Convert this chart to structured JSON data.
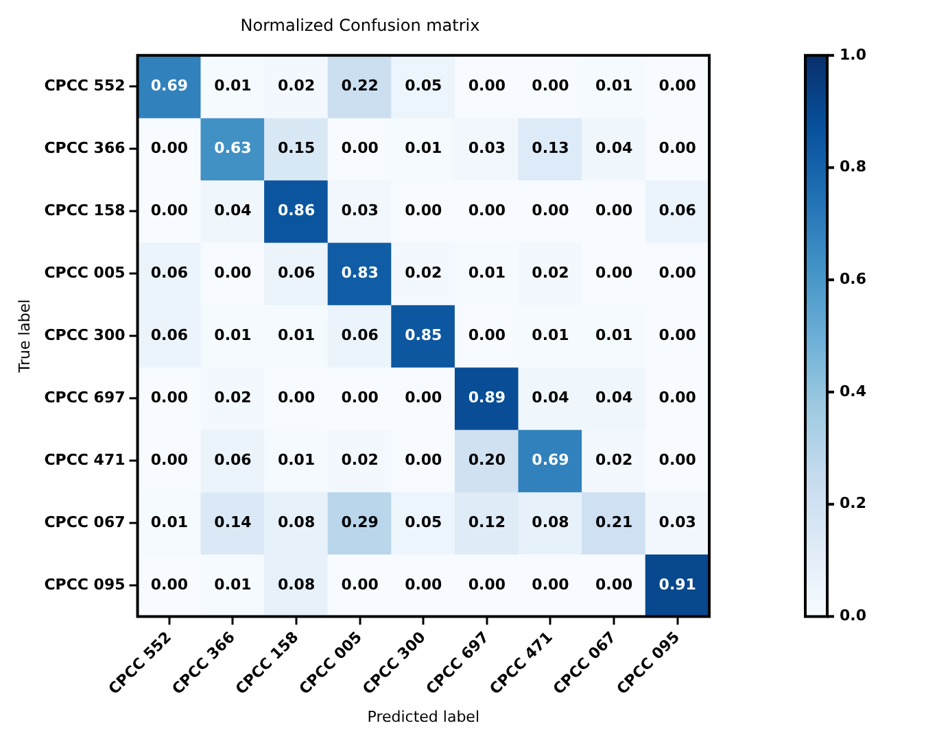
{
  "chart_data": {
    "type": "heatmap",
    "title": "Normalized Confusion matrix",
    "xlabel": "Predicted label",
    "ylabel": "True label",
    "categories": [
      "CPCC 552",
      "CPCC 366",
      "CPCC 158",
      "CPCC 005",
      "CPCC 300",
      "CPCC 697",
      "CPCC 471",
      "CPCC 067",
      "CPCC 095"
    ],
    "y_categories": [
      "CPCC 552",
      "CPCC 366",
      "CPCC 158",
      "CPCC 005",
      "CPCC 300",
      "CPCC 697",
      "CPCC 471",
      "CPCC 067",
      "CPCC 095"
    ],
    "cells": [
      [
        0.69,
        0.01,
        0.02,
        0.22,
        0.05,
        0.0,
        0.0,
        0.01,
        0.0
      ],
      [
        0.0,
        0.63,
        0.15,
        0.0,
        0.01,
        0.03,
        0.13,
        0.04,
        0.0
      ],
      [
        0.0,
        0.04,
        0.86,
        0.03,
        0.0,
        0.0,
        0.0,
        0.0,
        0.06
      ],
      [
        0.06,
        0.0,
        0.06,
        0.83,
        0.02,
        0.01,
        0.02,
        0.0,
        0.0
      ],
      [
        0.06,
        0.01,
        0.01,
        0.06,
        0.85,
        0.0,
        0.01,
        0.01,
        0.0
      ],
      [
        0.0,
        0.02,
        0.0,
        0.0,
        0.0,
        0.89,
        0.04,
        0.04,
        0.0
      ],
      [
        0.0,
        0.06,
        0.01,
        0.02,
        0.0,
        0.2,
        0.69,
        0.02,
        0.0
      ],
      [
        0.01,
        0.14,
        0.08,
        0.29,
        0.05,
        0.12,
        0.08,
        0.21,
        0.03
      ],
      [
        0.0,
        0.01,
        0.08,
        0.0,
        0.0,
        0.0,
        0.0,
        0.0,
        0.91
      ]
    ],
    "cell_labels": [
      [
        "0.69",
        "0.01",
        "0.02",
        "0.22",
        "0.05",
        "0.00",
        "0.00",
        "0.01",
        "0.00"
      ],
      [
        "0.00",
        "0.63",
        "0.15",
        "0.00",
        "0.01",
        "0.03",
        "0.13",
        "0.04",
        "0.00"
      ],
      [
        "0.00",
        "0.04",
        "0.86",
        "0.03",
        "0.00",
        "0.00",
        "0.00",
        "0.00",
        "0.06"
      ],
      [
        "0.06",
        "0.00",
        "0.06",
        "0.83",
        "0.02",
        "0.01",
        "0.02",
        "0.00",
        "0.00"
      ],
      [
        "0.06",
        "0.01",
        "0.01",
        "0.06",
        "0.85",
        "0.00",
        "0.01",
        "0.01",
        "0.00"
      ],
      [
        "0.00",
        "0.02",
        "0.00",
        "0.00",
        "0.00",
        "0.89",
        "0.04",
        "0.04",
        "0.00"
      ],
      [
        "0.00",
        "0.06",
        "0.01",
        "0.02",
        "0.00",
        "0.20",
        "0.69",
        "0.02",
        "0.00"
      ],
      [
        "0.01",
        "0.14",
        "0.08",
        "0.29",
        "0.05",
        "0.12",
        "0.08",
        "0.21",
        "0.03"
      ],
      [
        "0.00",
        "0.01",
        "0.08",
        "0.00",
        "0.00",
        "0.00",
        "0.00",
        "0.00",
        "0.91"
      ]
    ],
    "clim": [
      0,
      1
    ],
    "cticks": [
      {
        "value": 0,
        "label": "0.0"
      },
      {
        "value": 0.2,
        "label": "0.2"
      },
      {
        "value": 0.4,
        "label": "0.4"
      },
      {
        "value": 0.6,
        "label": "0.6"
      },
      {
        "value": 0.8,
        "label": "0.8"
      },
      {
        "value": 1,
        "label": "1.0"
      }
    ]
  }
}
